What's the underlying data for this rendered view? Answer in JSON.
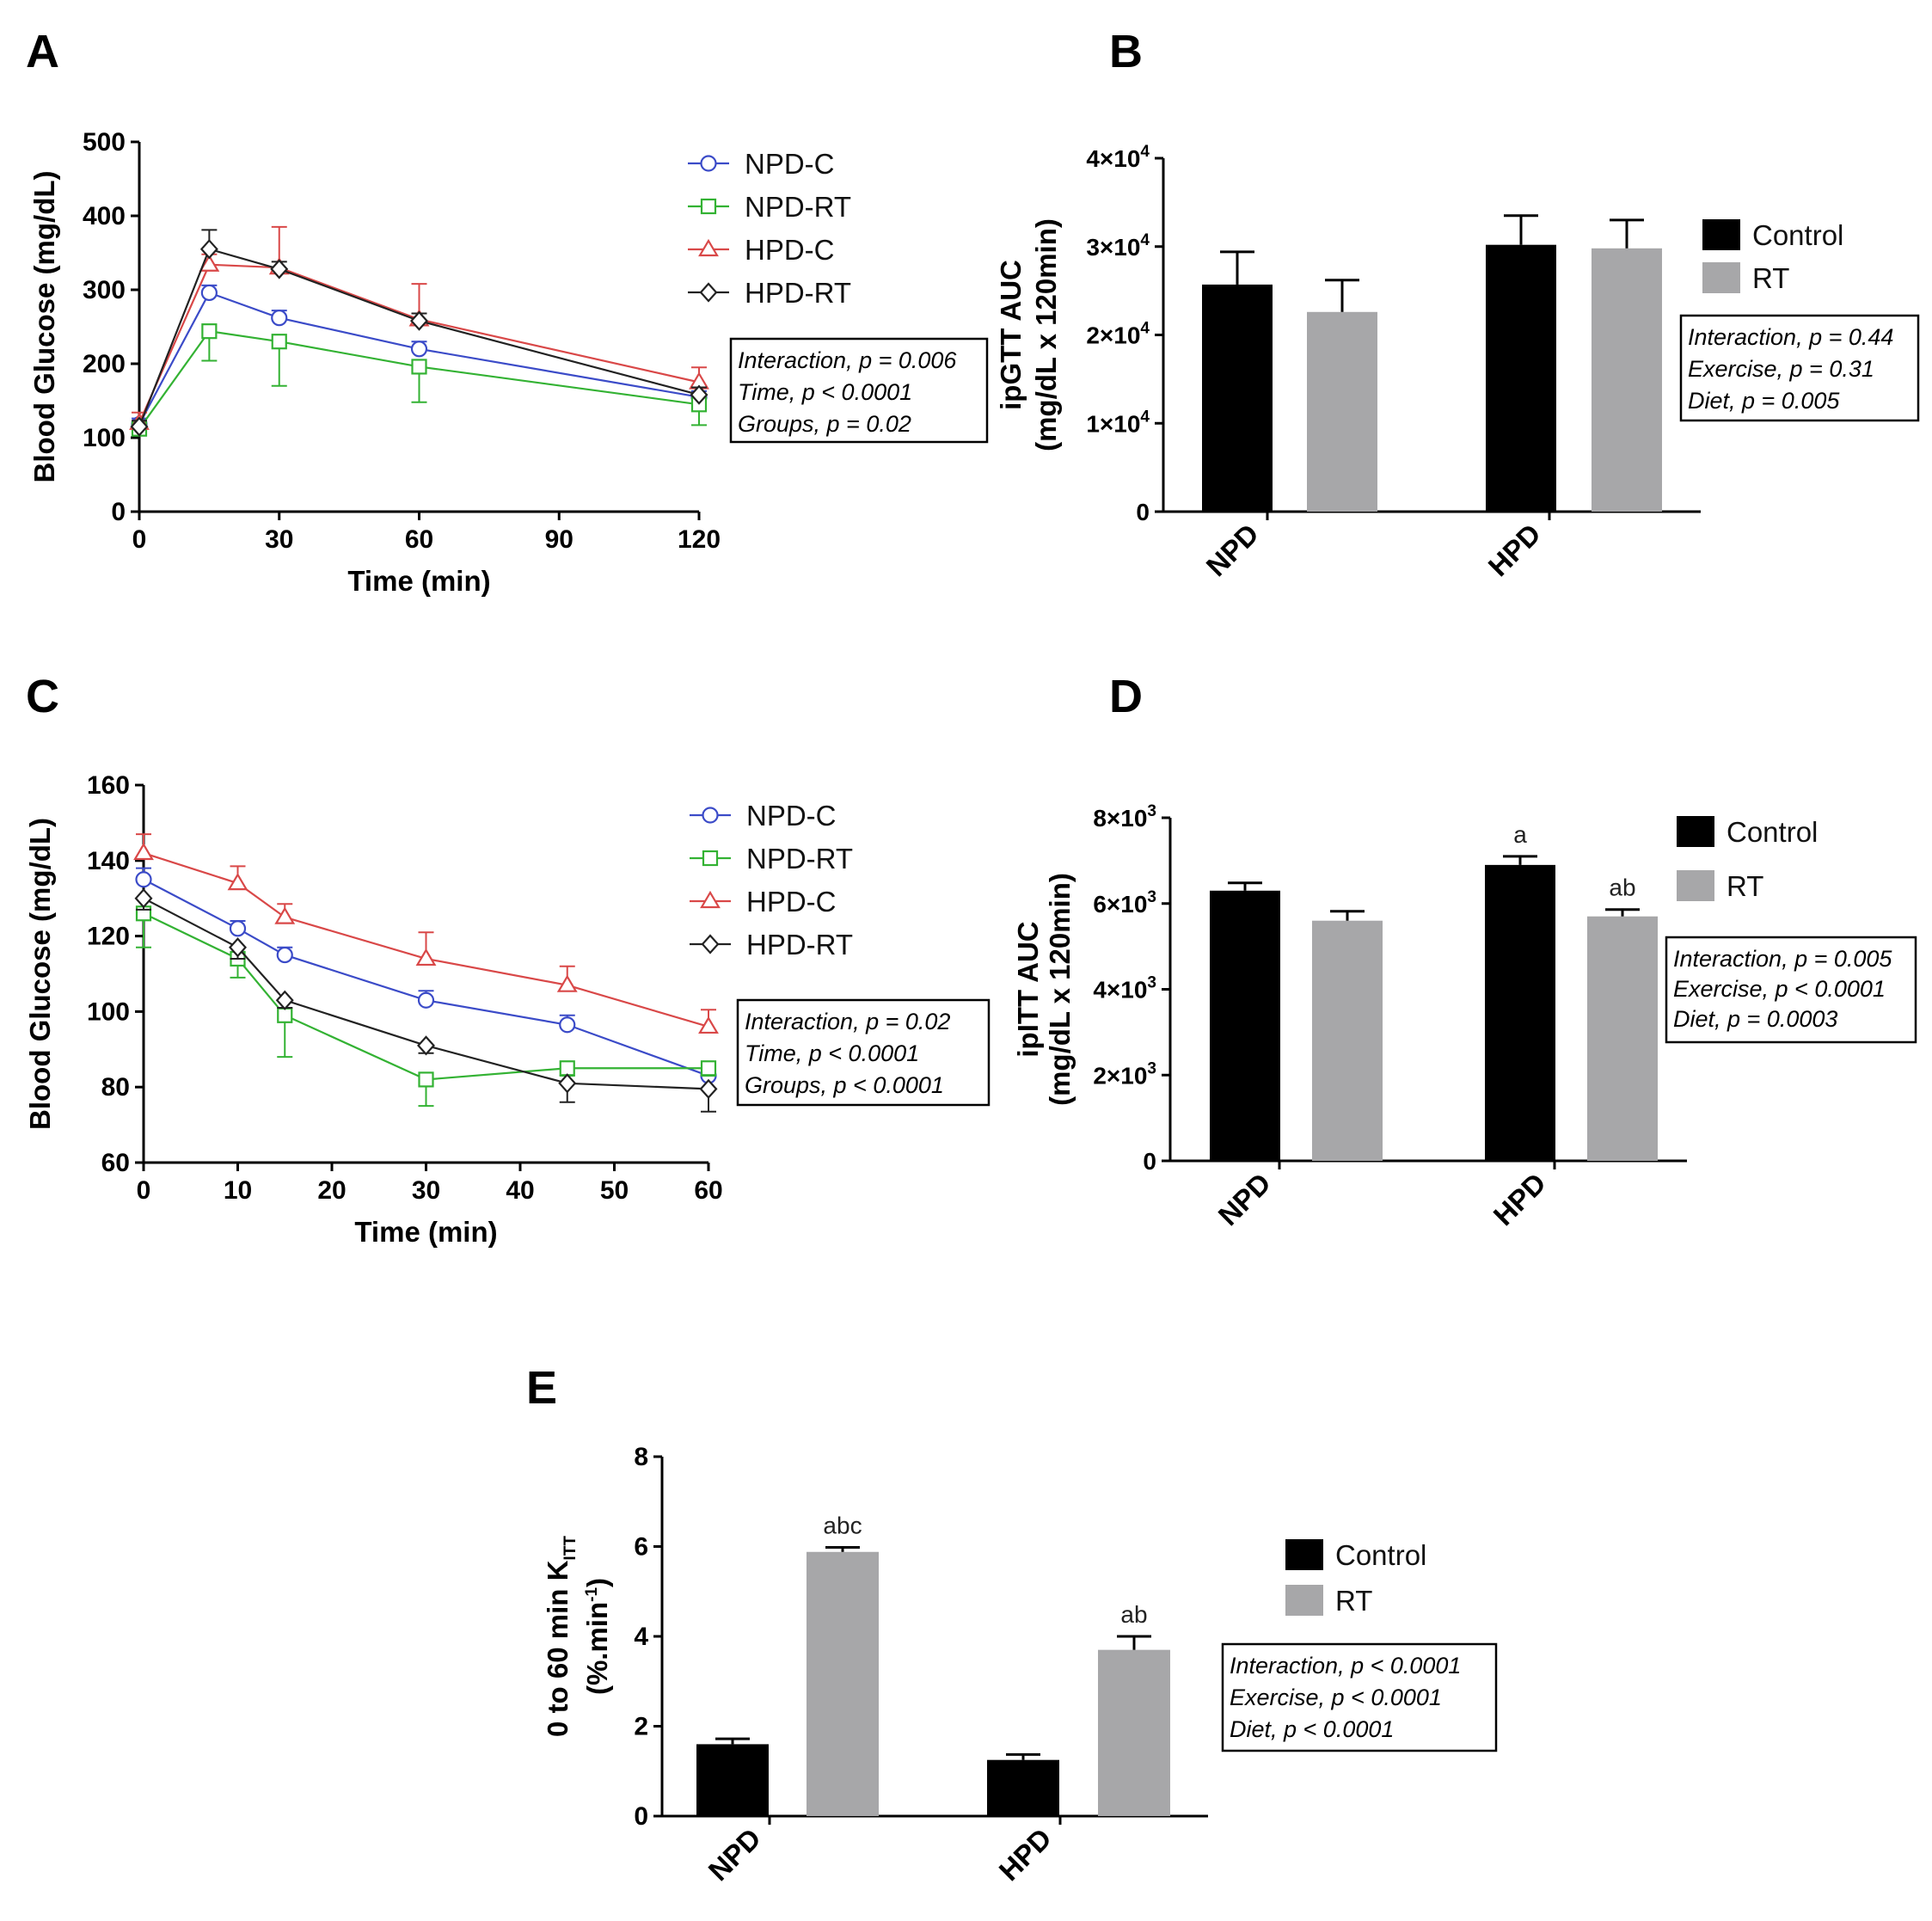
{
  "panels": {
    "A": {
      "letter": "A"
    },
    "B": {
      "letter": "B"
    },
    "C": {
      "letter": "C"
    },
    "D": {
      "letter": "D"
    },
    "E": {
      "letter": "E"
    }
  },
  "colors": {
    "NPD-C": "#3b4bc8",
    "NPD-RT": "#33b233",
    "HPD-C": "#d94848",
    "HPD-RT": "#222222",
    "Control": "#000000",
    "RT": "#a7a7a9"
  },
  "chart_data": [
    {
      "id": "A",
      "type": "line",
      "title": "",
      "xlabel": "Time (min)",
      "ylabel": "Blood Glucose (mg/dL)",
      "xlim": [
        0,
        120
      ],
      "ylim": [
        0,
        500
      ],
      "xticks": [
        0,
        30,
        60,
        90,
        120
      ],
      "yticks": [
        0,
        100,
        200,
        300,
        400,
        500
      ],
      "x": [
        0,
        15,
        30,
        60,
        120
      ],
      "series": [
        {
          "name": "NPD-C",
          "marker": "circle",
          "values": [
            118,
            296,
            262,
            220,
            155
          ],
          "err": [
            8,
            10,
            10,
            10,
            8
          ],
          "err_dir": "up"
        },
        {
          "name": "NPD-RT",
          "marker": "square",
          "values": [
            112,
            244,
            230,
            196,
            145
          ],
          "err": [
            8,
            40,
            60,
            48,
            28
          ],
          "err_dir": "down"
        },
        {
          "name": "HPD-C",
          "marker": "triangle",
          "values": [
            120,
            334,
            330,
            260,
            175
          ],
          "err": [
            14,
            14,
            55,
            48,
            20
          ],
          "err_dir": "up"
        },
        {
          "name": "HPD-RT",
          "marker": "diamond",
          "values": [
            115,
            355,
            328,
            258,
            158
          ],
          "err": [
            8,
            26,
            10,
            10,
            10
          ],
          "err_dir": "up"
        }
      ],
      "legend": [
        "NPD-C",
        "NPD-RT",
        "HPD-C",
        "HPD-RT"
      ],
      "stats": [
        "Interaction, p = 0.006",
        "Time, p < 0.0001",
        "Groups, p = 0.02"
      ]
    },
    {
      "id": "B",
      "type": "bar",
      "title": "",
      "xlabel": "",
      "ylabel_line1": "ipGTT AUC",
      "ylabel_line2": "(mg/dL x 120min)",
      "categories": [
        "NPD",
        "HPD"
      ],
      "ylim": [
        0,
        40000
      ],
      "ytick_labels": [
        {
          "value": 0,
          "base": "0",
          "exp": ""
        },
        {
          "value": 10000,
          "base": "1×10",
          "exp": "4"
        },
        {
          "value": 20000,
          "base": "2×10",
          "exp": "4"
        },
        {
          "value": 30000,
          "base": "3×10",
          "exp": "4"
        },
        {
          "value": 40000,
          "base": "4×10",
          "exp": "4"
        }
      ],
      "series": [
        {
          "name": "Control",
          "values": [
            25700,
            30200
          ],
          "err": [
            3700,
            3300
          ]
        },
        {
          "name": "RT",
          "values": [
            22600,
            29800
          ],
          "err": [
            3600,
            3200
          ]
        }
      ],
      "annotations": [],
      "legend": [
        "Control",
        "RT"
      ],
      "stats": [
        "Interaction, p = 0.44",
        "Exercise, p = 0.31",
        "Diet, p = 0.005"
      ]
    },
    {
      "id": "C",
      "type": "line",
      "title": "",
      "xlabel": "Time (min)",
      "ylabel": "Blood Glucose (mg/dL)",
      "xlim": [
        0,
        60
      ],
      "ylim": [
        60,
        160
      ],
      "xticks": [
        0,
        10,
        20,
        30,
        40,
        50,
        60
      ],
      "yticks": [
        60,
        80,
        100,
        120,
        140,
        160
      ],
      "x": [
        0,
        10,
        15,
        30,
        45,
        60
      ],
      "series": [
        {
          "name": "NPD-C",
          "marker": "circle",
          "values": [
            135,
            122,
            115,
            103,
            96.5,
            83
          ],
          "err": [
            3,
            2,
            2,
            2.5,
            2.5,
            3
          ],
          "err_dir": "up"
        },
        {
          "name": "NPD-RT",
          "marker": "square",
          "values": [
            126,
            114,
            99,
            82,
            85,
            85
          ],
          "err": [
            9,
            5,
            11,
            7,
            2,
            2
          ],
          "err_dir": "down"
        },
        {
          "name": "HPD-C",
          "marker": "triangle",
          "values": [
            142,
            134,
            125,
            114,
            107,
            96
          ],
          "err": [
            5,
            4.5,
            3.5,
            7,
            5,
            4.5
          ],
          "err_dir": "up"
        },
        {
          "name": "HPD-RT",
          "marker": "diamond",
          "values": [
            130,
            117,
            103,
            91,
            81,
            79.5
          ],
          "err": [
            3,
            3,
            2,
            2,
            5,
            6
          ],
          "err_dir": "down"
        }
      ],
      "legend": [
        "NPD-C",
        "NPD-RT",
        "HPD-C",
        "HPD-RT"
      ],
      "stats": [
        "Interaction, p = 0.02",
        "Time, p < 0.0001",
        "Groups, p < 0.0001"
      ]
    },
    {
      "id": "D",
      "type": "bar",
      "title": "",
      "xlabel": "",
      "ylabel_line1": "ipITT AUC",
      "ylabel_line2": "(mg/dL x 120min)",
      "categories": [
        "NPD",
        "HPD"
      ],
      "ylim": [
        0,
        8000
      ],
      "ytick_labels": [
        {
          "value": 0,
          "base": "0",
          "exp": ""
        },
        {
          "value": 2000,
          "base": "2×10",
          "exp": "3"
        },
        {
          "value": 4000,
          "base": "4×10",
          "exp": "3"
        },
        {
          "value": 6000,
          "base": "6×10",
          "exp": "3"
        },
        {
          "value": 8000,
          "base": "8×10",
          "exp": "3"
        }
      ],
      "series": [
        {
          "name": "Control",
          "values": [
            6300,
            6900
          ],
          "err": [
            180,
            200
          ]
        },
        {
          "name": "RT",
          "values": [
            5600,
            5700
          ],
          "err": [
            220,
            160
          ]
        }
      ],
      "annotations": [
        {
          "category": 1,
          "series": 0,
          "text": "a"
        },
        {
          "category": 1,
          "series": 1,
          "text": "ab"
        }
      ],
      "legend": [
        "Control",
        "RT"
      ],
      "stats": [
        "Interaction, p = 0.005",
        "Exercise, p < 0.0001",
        "Diet, p = 0.0003"
      ]
    },
    {
      "id": "E",
      "type": "bar",
      "title": "",
      "xlabel": "",
      "ylabel_line1": "0 to 60 min K",
      "ylabel_sub": "ITT",
      "ylabel_line2": "(%.min",
      "ylabel_sup": "-1",
      "ylabel_close": ")",
      "categories": [
        "NPD",
        "HPD"
      ],
      "ylim": [
        0,
        8
      ],
      "ytick_labels": [
        {
          "value": 0,
          "base": "0",
          "exp": ""
        },
        {
          "value": 2,
          "base": "2",
          "exp": ""
        },
        {
          "value": 4,
          "base": "4",
          "exp": ""
        },
        {
          "value": 6,
          "base": "6",
          "exp": ""
        },
        {
          "value": 8,
          "base": "8",
          "exp": ""
        }
      ],
      "series": [
        {
          "name": "Control",
          "values": [
            1.6,
            1.25
          ],
          "err": [
            0.12,
            0.12
          ]
        },
        {
          "name": "RT",
          "values": [
            5.88,
            3.7
          ],
          "err": [
            0.1,
            0.3
          ]
        }
      ],
      "annotations": [
        {
          "category": 0,
          "series": 1,
          "text": "abc"
        },
        {
          "category": 1,
          "series": 1,
          "text": "ab"
        }
      ],
      "legend": [
        "Control",
        "RT"
      ],
      "stats": [
        "Interaction, p < 0.0001",
        "Exercise, p < 0.0001",
        "Diet, p < 0.0001"
      ]
    }
  ]
}
